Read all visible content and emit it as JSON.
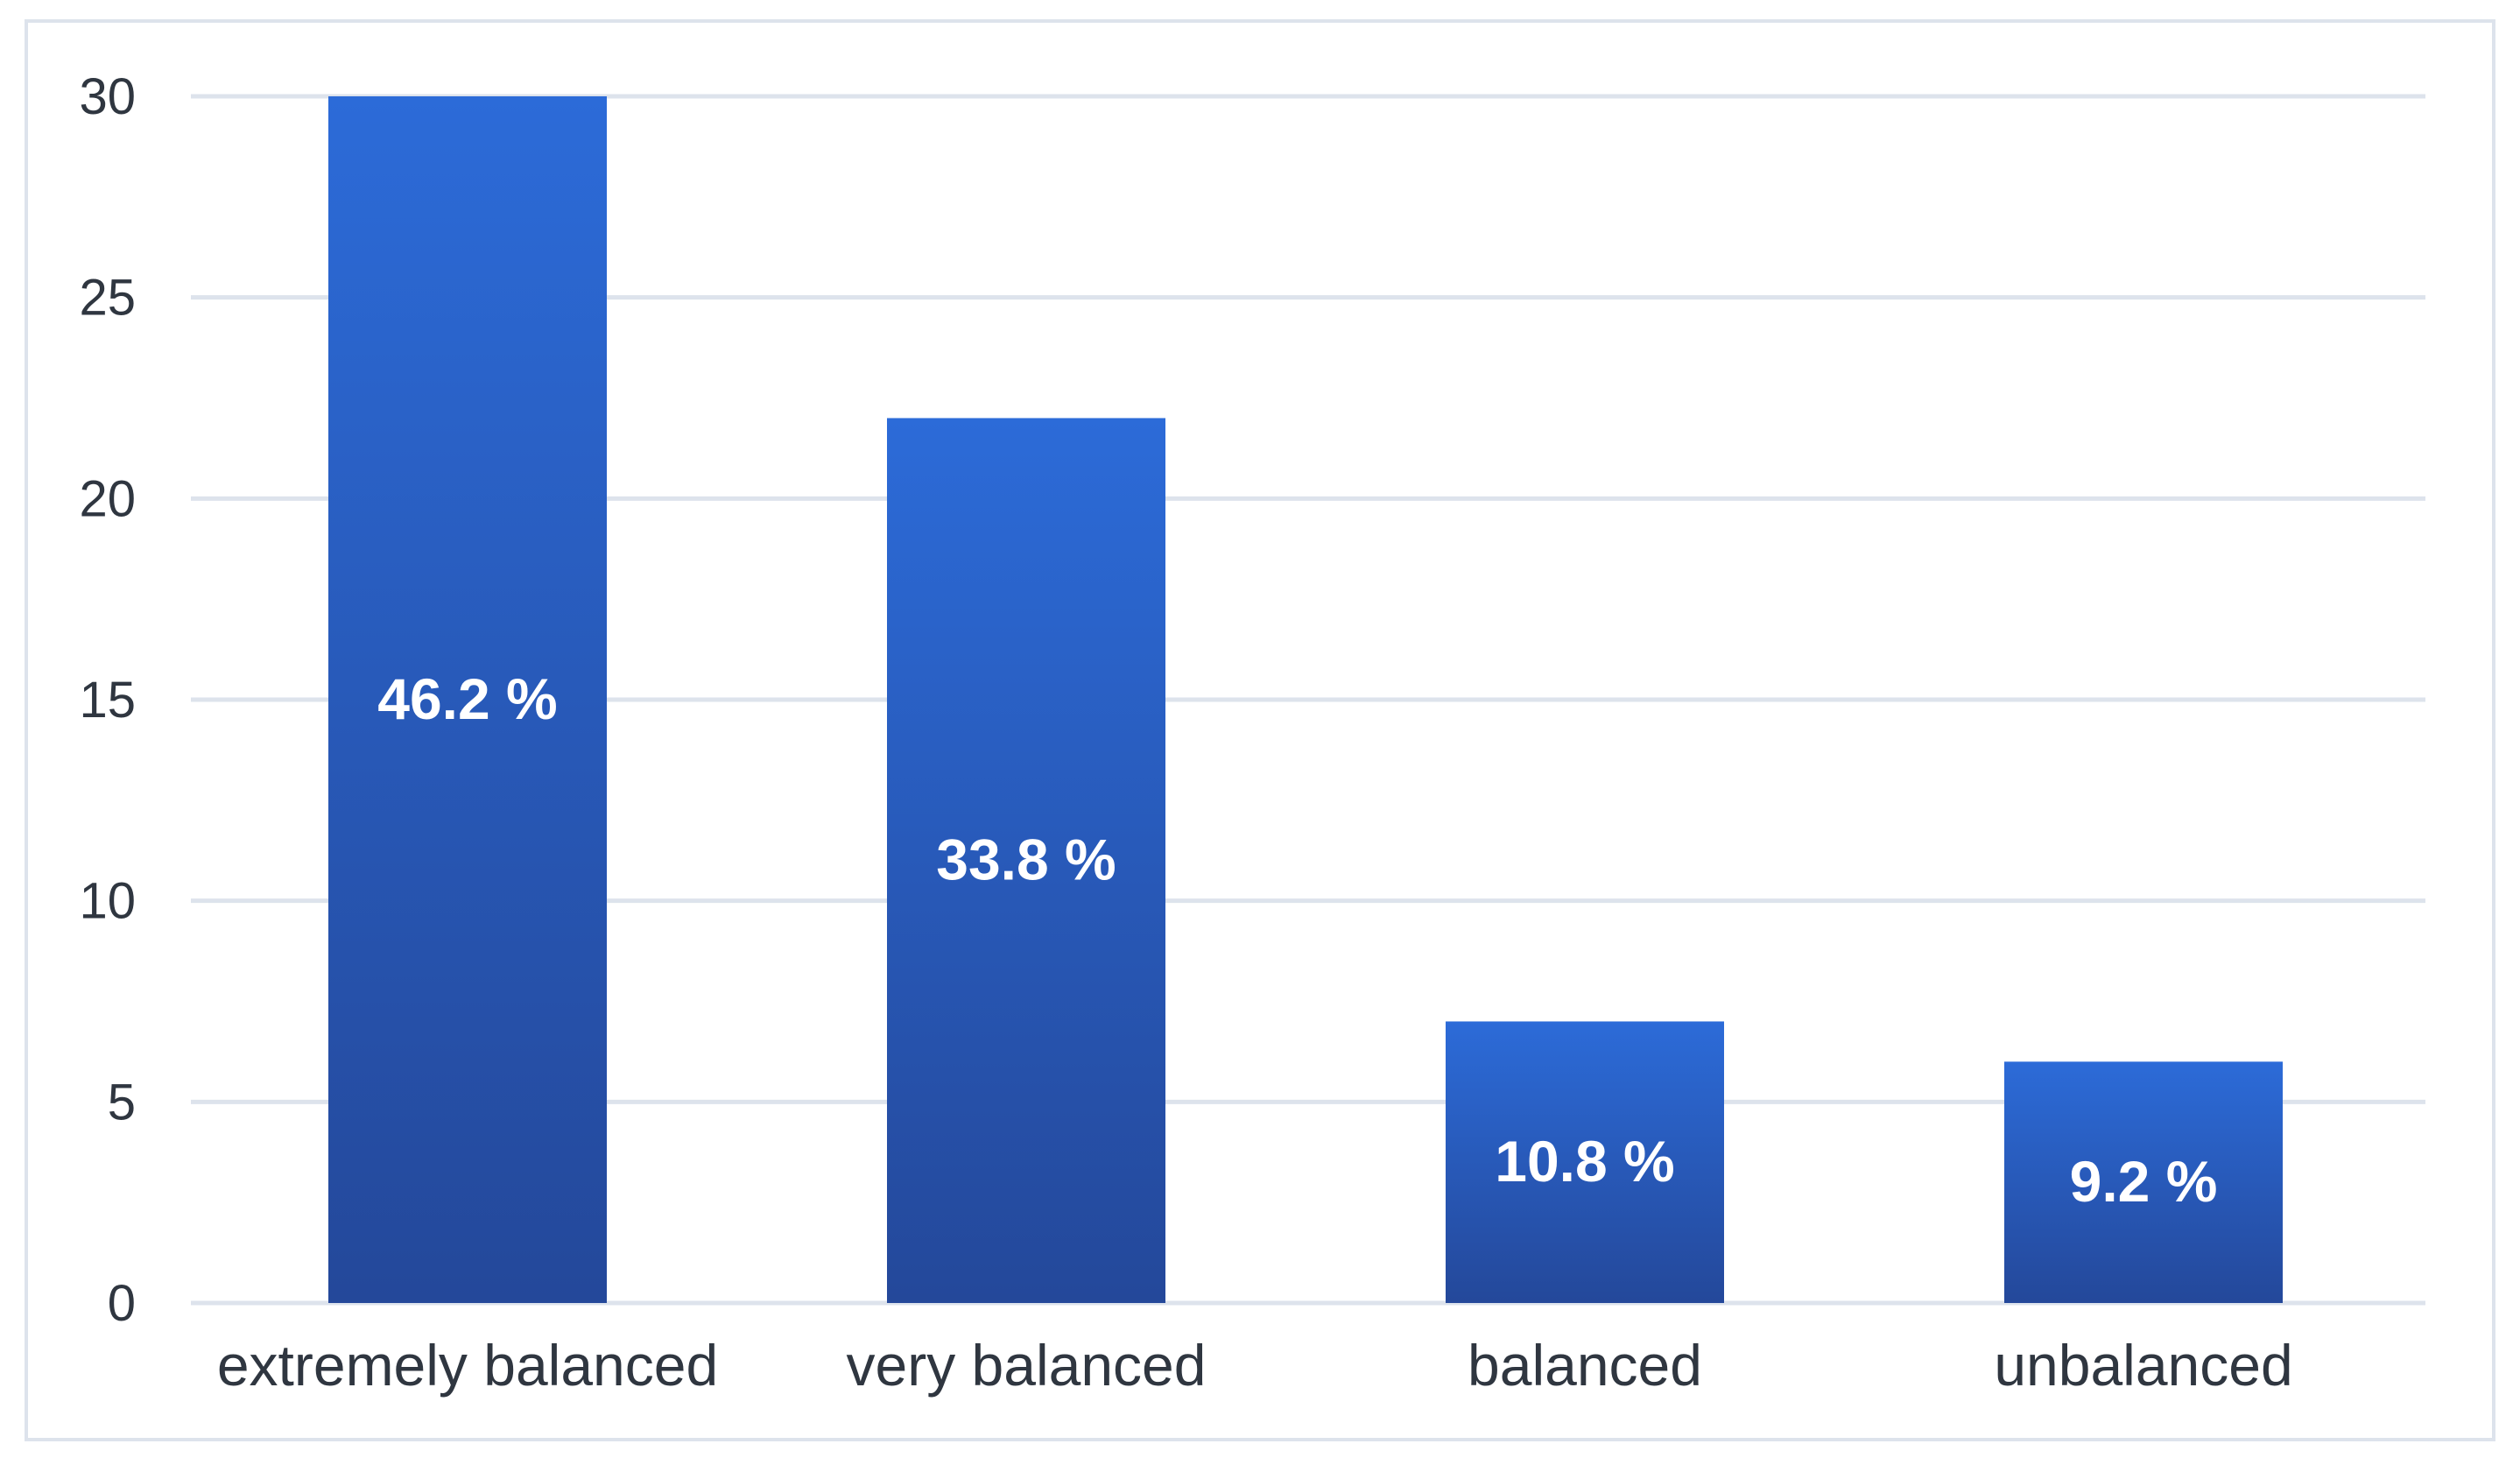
{
  "chart_data": {
    "type": "bar",
    "title": "",
    "xlabel": "",
    "ylabel": "",
    "categories": [
      "extremely balanced",
      "very balanced",
      "balanced",
      "unbalanced"
    ],
    "values": [
      30,
      22,
      7,
      6
    ],
    "data_labels": [
      "46.2 %",
      "33.8 %",
      "10.8 %",
      "9.2 %"
    ],
    "ylim": [
      0,
      30
    ],
    "yticks": [
      "0",
      "5",
      "10",
      "15",
      "20",
      "25",
      "30"
    ],
    "grid": true,
    "legend": "none",
    "colors": {
      "bar_top": "#2c6bd8",
      "bar_bottom": "#24489a",
      "grid": "#dde3ec",
      "frame": "#dde3ec",
      "text": "#2f3640",
      "data_label": "#ffffff"
    }
  }
}
